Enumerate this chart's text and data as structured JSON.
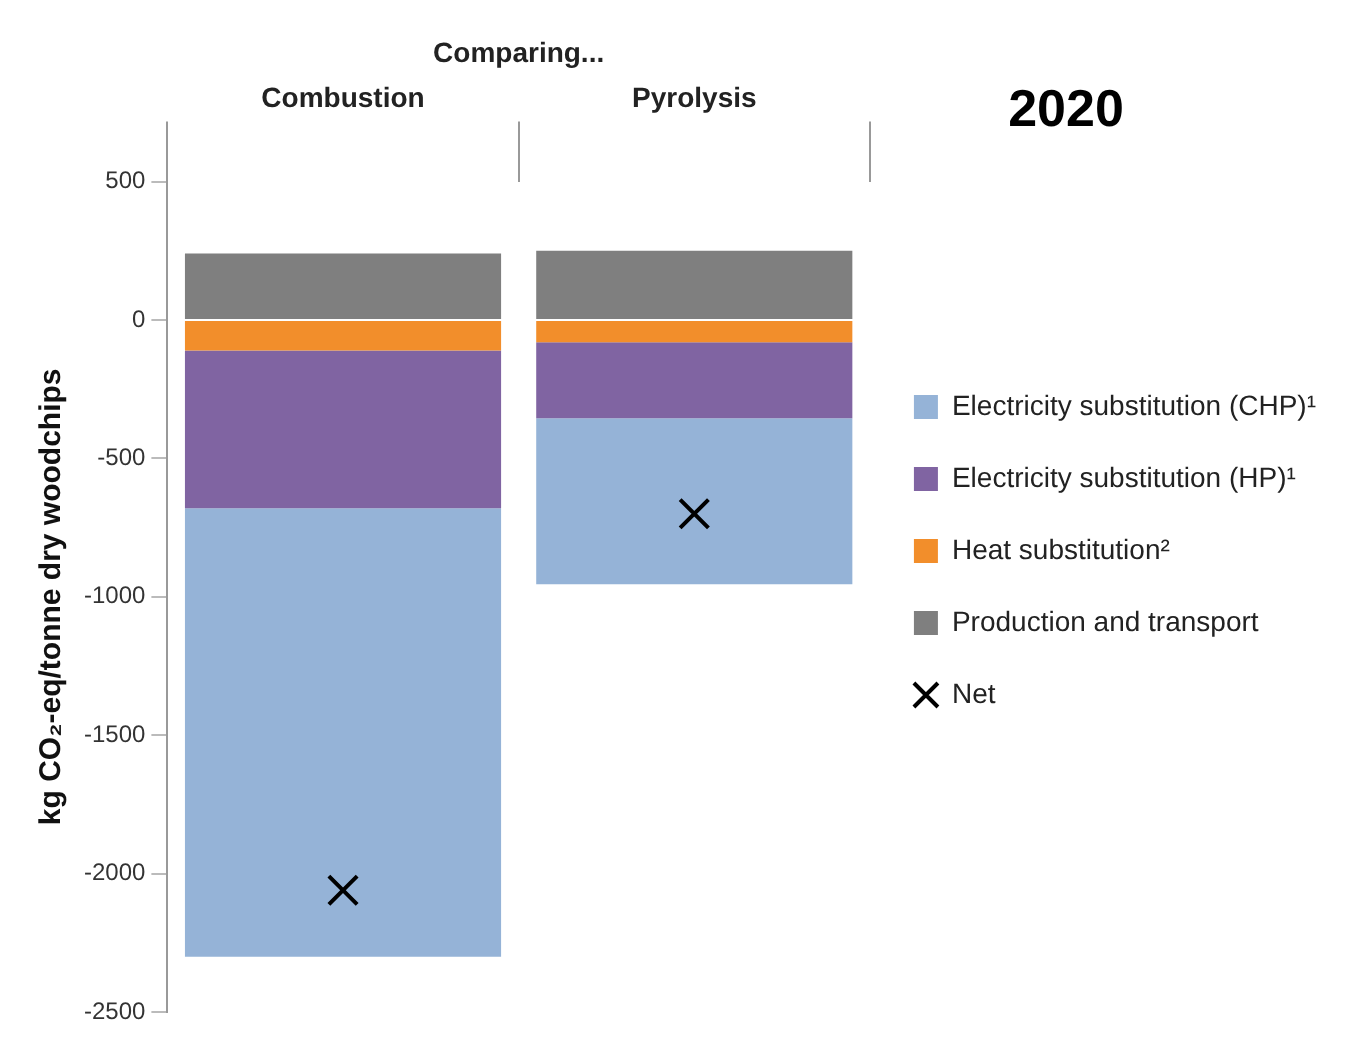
{
  "chart_data": {
    "type": "bar",
    "title": "2020",
    "ylabel": "kg CO₂-eq/tonne dry woodchips",
    "annotations": [
      "Comparing..."
    ],
    "categories": [
      "Combustion",
      "Pyrolysis"
    ],
    "stacked": true,
    "series": [
      {
        "name": "Heat substitution²",
        "color": "#f28e2b",
        "values": [
          -110,
          -80
        ]
      },
      {
        "name": "Electricity substitution (HP)¹",
        "color": "#8064a2",
        "values": [
          -570,
          -275
        ]
      },
      {
        "name": "Electricity substitution (CHP)¹",
        "color": "#95b3d7",
        "values": [
          -1620,
          -600
        ]
      },
      {
        "name": "Production and transport",
        "color": "#7f7f7f",
        "values": [
          240,
          250
        ]
      },
      {
        "name": "Net",
        "type": "scatter",
        "marker": "cross",
        "color": "#000000",
        "values": [
          -2060,
          -700
        ]
      }
    ],
    "ylim": [
      -2500,
      500
    ],
    "yticks": [
      -2500,
      -2000,
      -1500,
      -1000,
      -500,
      0,
      500
    ],
    "grid": false,
    "legend": "right"
  }
}
